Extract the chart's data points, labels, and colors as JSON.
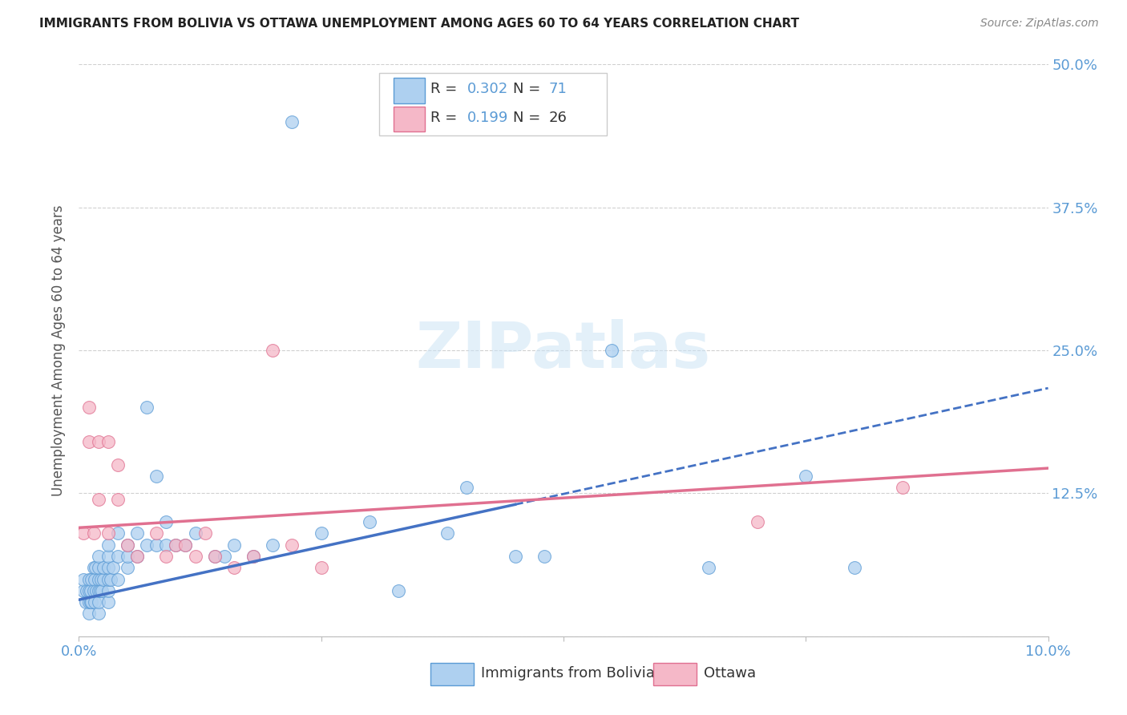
{
  "title": "IMMIGRANTS FROM BOLIVIA VS OTTAWA UNEMPLOYMENT AMONG AGES 60 TO 64 YEARS CORRELATION CHART",
  "source": "Source: ZipAtlas.com",
  "ylabel": "Unemployment Among Ages 60 to 64 years",
  "legend_label1": "Immigrants from Bolivia",
  "legend_label2": "Ottawa",
  "r1": 0.302,
  "n1": 71,
  "r2": 0.199,
  "n2": 26,
  "xlim": [
    0.0,
    0.1
  ],
  "ylim": [
    0.0,
    0.5
  ],
  "xticks": [
    0.0,
    0.025,
    0.05,
    0.075,
    0.1
  ],
  "yticks": [
    0.0,
    0.125,
    0.25,
    0.375,
    0.5
  ],
  "xtick_labels_show": {
    "0": "0.0%",
    "4": "10.0%"
  },
  "ytick_labels_show": {
    "1": "12.5%",
    "2": "25.0%",
    "3": "37.5%",
    "4": "50.0%"
  },
  "color_blue_fill": "#aed0f0",
  "color_blue_edge": "#5b9bd5",
  "color_pink_fill": "#f5b8c8",
  "color_pink_edge": "#e07090",
  "color_blue_line": "#4472c4",
  "color_pink_line": "#e07090",
  "blue_points_x": [
    0.0005,
    0.0005,
    0.0007,
    0.0008,
    0.001,
    0.001,
    0.001,
    0.001,
    0.0012,
    0.0012,
    0.0013,
    0.0013,
    0.0015,
    0.0015,
    0.0016,
    0.0016,
    0.0017,
    0.0018,
    0.002,
    0.002,
    0.002,
    0.002,
    0.002,
    0.002,
    0.0022,
    0.0023,
    0.0024,
    0.0025,
    0.0025,
    0.003,
    0.003,
    0.003,
    0.003,
    0.003,
    0.003,
    0.0033,
    0.0035,
    0.004,
    0.004,
    0.004,
    0.005,
    0.005,
    0.005,
    0.006,
    0.006,
    0.007,
    0.007,
    0.008,
    0.008,
    0.009,
    0.009,
    0.01,
    0.011,
    0.012,
    0.014,
    0.015,
    0.016,
    0.018,
    0.02,
    0.022,
    0.025,
    0.03,
    0.033,
    0.038,
    0.04,
    0.045,
    0.048,
    0.055,
    0.065,
    0.075,
    0.08
  ],
  "blue_points_y": [
    0.04,
    0.05,
    0.03,
    0.04,
    0.02,
    0.03,
    0.04,
    0.05,
    0.03,
    0.04,
    0.03,
    0.05,
    0.04,
    0.06,
    0.03,
    0.05,
    0.06,
    0.04,
    0.02,
    0.03,
    0.04,
    0.05,
    0.06,
    0.07,
    0.04,
    0.05,
    0.04,
    0.05,
    0.06,
    0.03,
    0.04,
    0.05,
    0.06,
    0.07,
    0.08,
    0.05,
    0.06,
    0.05,
    0.07,
    0.09,
    0.06,
    0.07,
    0.08,
    0.07,
    0.09,
    0.08,
    0.2,
    0.08,
    0.14,
    0.08,
    0.1,
    0.08,
    0.08,
    0.09,
    0.07,
    0.07,
    0.08,
    0.07,
    0.08,
    0.45,
    0.09,
    0.1,
    0.04,
    0.09,
    0.13,
    0.07,
    0.07,
    0.25,
    0.06,
    0.14,
    0.06
  ],
  "pink_points_x": [
    0.0005,
    0.001,
    0.001,
    0.0015,
    0.002,
    0.002,
    0.003,
    0.003,
    0.004,
    0.004,
    0.005,
    0.006,
    0.008,
    0.009,
    0.01,
    0.011,
    0.012,
    0.013,
    0.014,
    0.016,
    0.018,
    0.02,
    0.022,
    0.025,
    0.07,
    0.085
  ],
  "pink_points_y": [
    0.09,
    0.17,
    0.2,
    0.09,
    0.17,
    0.12,
    0.17,
    0.09,
    0.12,
    0.15,
    0.08,
    0.07,
    0.09,
    0.07,
    0.08,
    0.08,
    0.07,
    0.09,
    0.07,
    0.06,
    0.07,
    0.25,
    0.08,
    0.06,
    0.1,
    0.13
  ],
  "watermark": "ZIPatlas",
  "background_color": "#ffffff",
  "grid_color": "#d0d0d0",
  "blue_line_intercept": 0.032,
  "blue_line_slope": 1.85,
  "pink_line_intercept": 0.095,
  "pink_line_slope": 0.52
}
